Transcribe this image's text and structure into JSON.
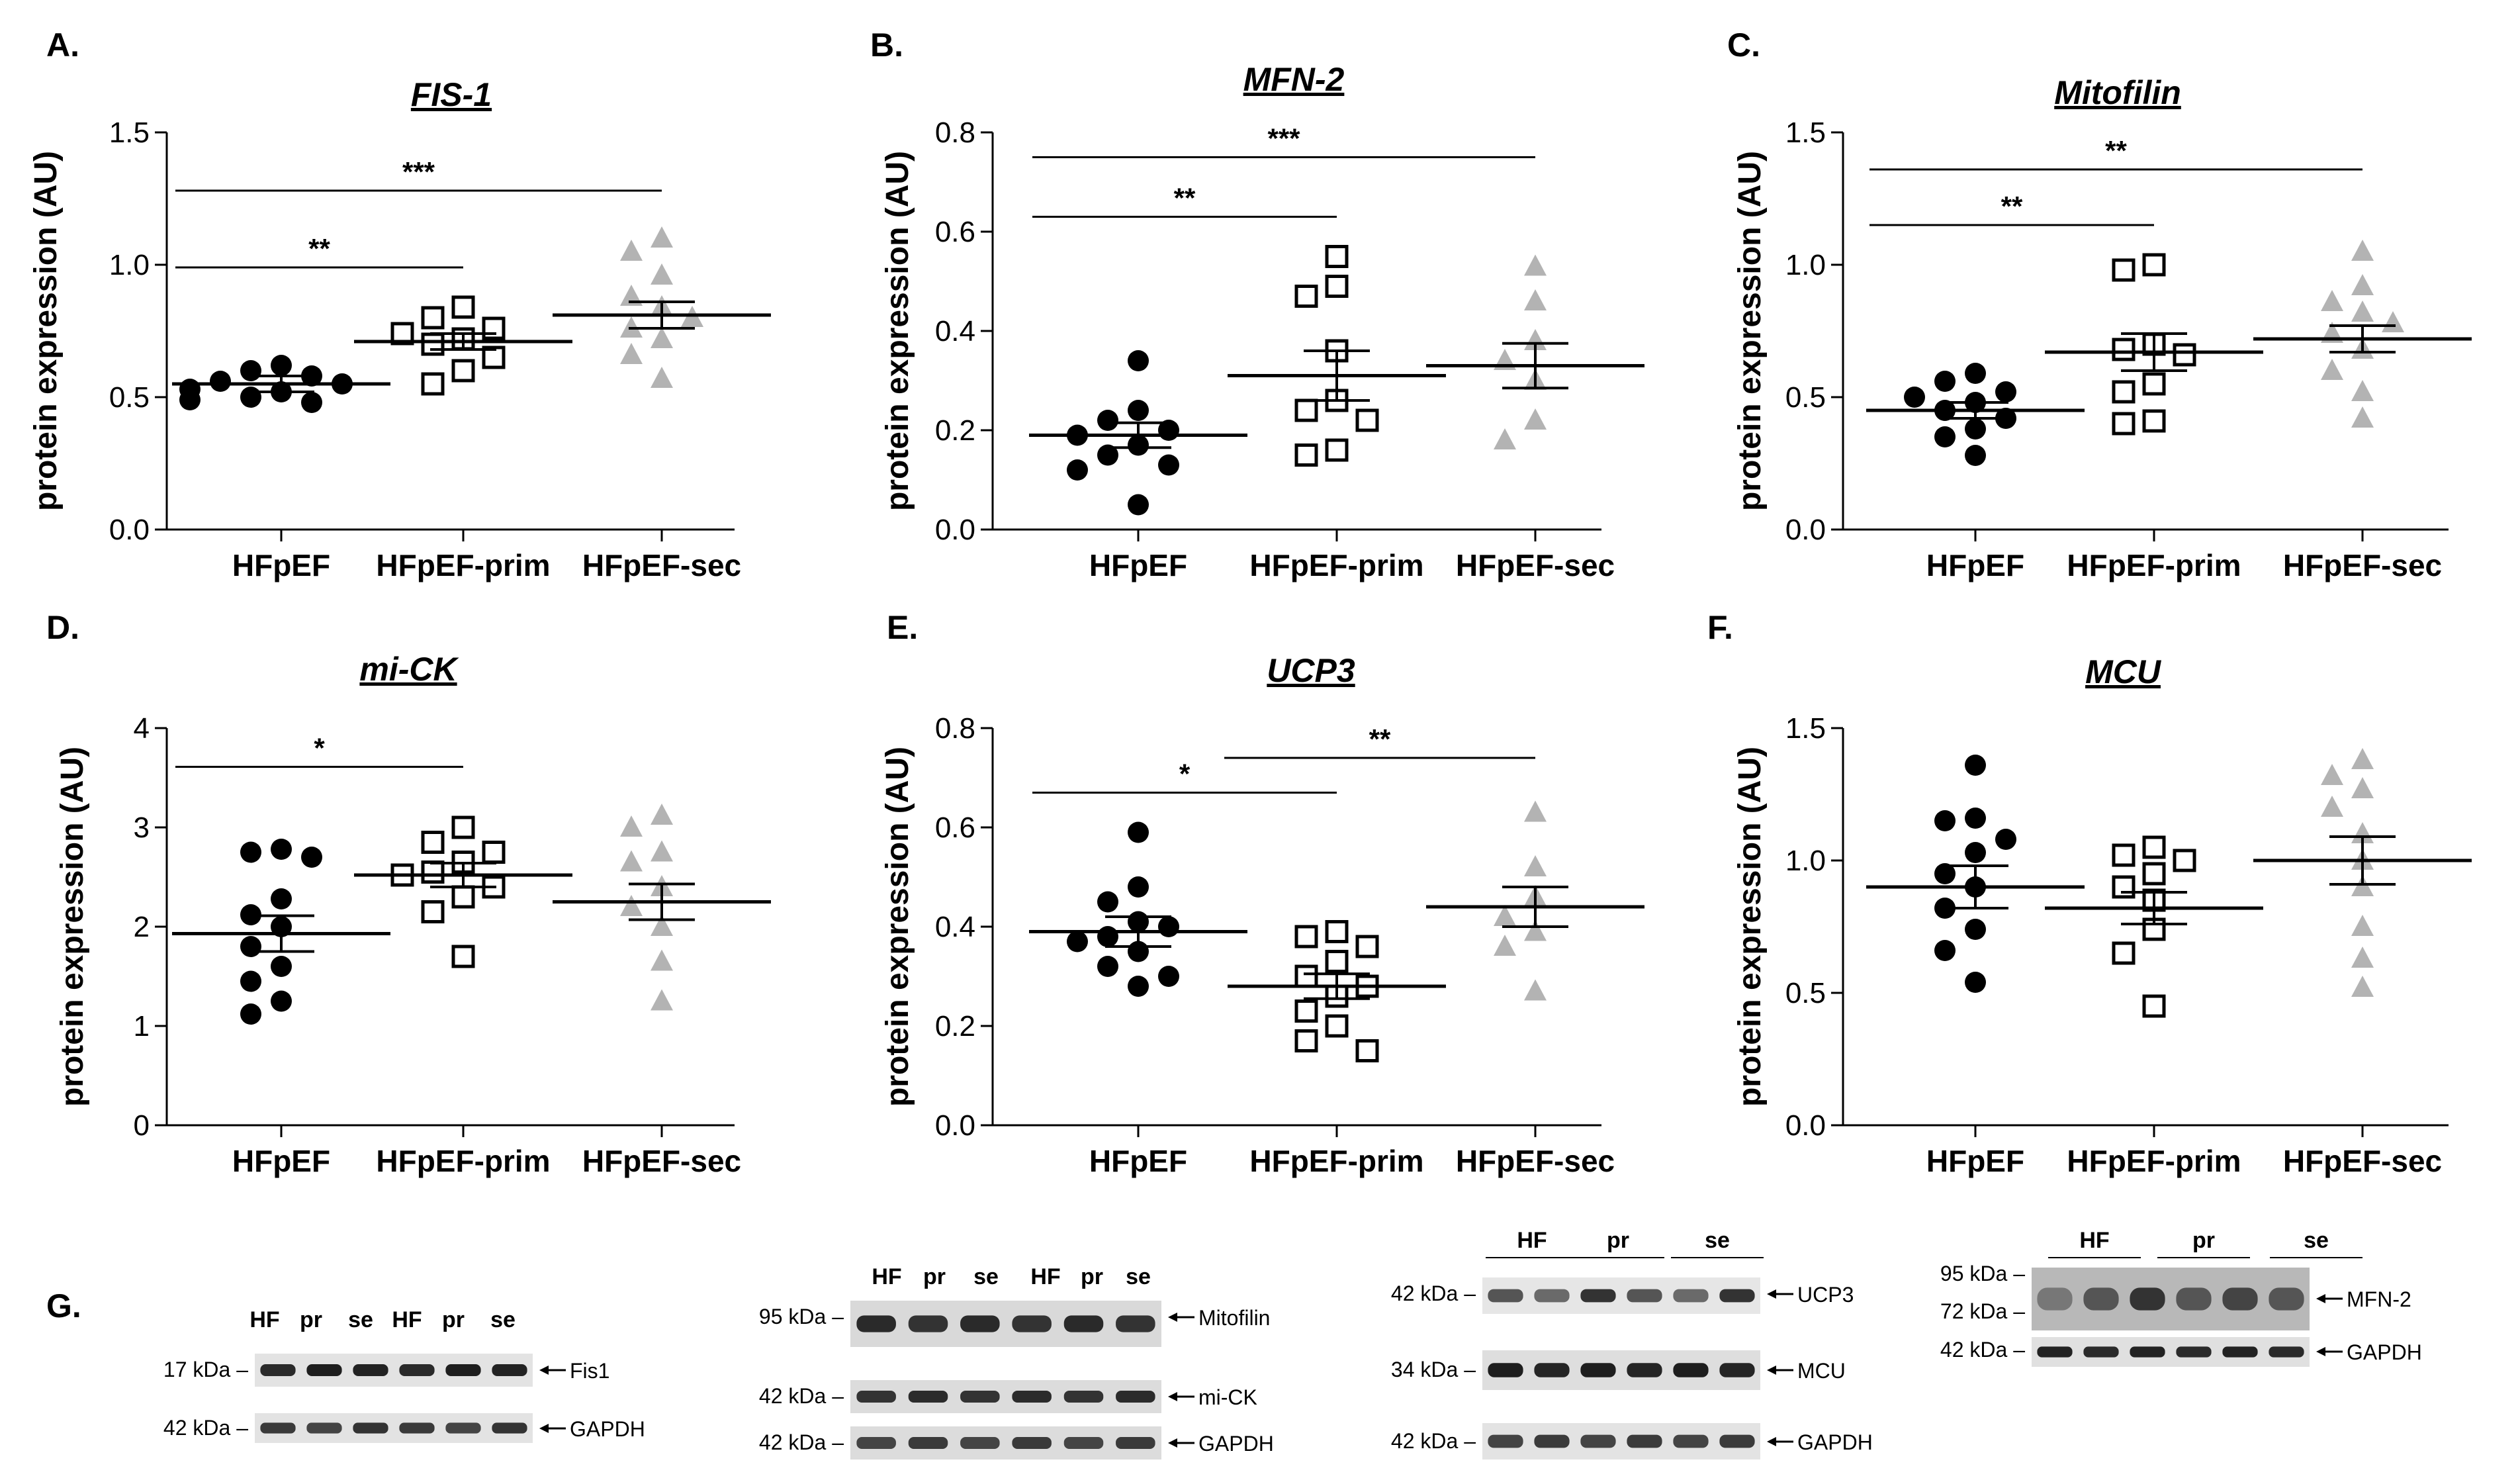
{
  "chart_data": [
    {
      "id": "A",
      "type": "scatter",
      "panel_label": "A.",
      "title": "FIS-1",
      "ylabel": "protein expression (AU)",
      "ylim": [
        0,
        1.5
      ],
      "yticks": [
        "0.0",
        "0.5",
        "1.0",
        "1.5"
      ],
      "categories": [
        "HFpEF",
        "HFpEF-prim",
        "HFpEF-sec"
      ],
      "series": [
        {
          "name": "HFpEF",
          "marker": "circle",
          "color": "#000000",
          "values": [
            0.48,
            0.49,
            0.5,
            0.52,
            0.53,
            0.55,
            0.56,
            0.58,
            0.6,
            0.62
          ],
          "mean": 0.55,
          "sem": 0.03
        },
        {
          "name": "HFpEF-prim",
          "marker": "square",
          "color": "#000000",
          "values": [
            0.55,
            0.6,
            0.65,
            0.7,
            0.72,
            0.74,
            0.76,
            0.8,
            0.84
          ],
          "mean": 0.71,
          "sem": 0.03
        },
        {
          "name": "HFpEF-sec",
          "marker": "triangle",
          "color": "#b3b3b3",
          "values": [
            0.57,
            0.66,
            0.72,
            0.76,
            0.8,
            0.84,
            0.88,
            0.96,
            1.05,
            1.1
          ],
          "mean": 0.81,
          "sem": 0.05
        }
      ],
      "significance": [
        {
          "from": 0,
          "to": 1,
          "label": "**",
          "y": 0.99
        },
        {
          "from": 0,
          "to": 2,
          "label": "***",
          "y": 1.28
        }
      ]
    },
    {
      "id": "B",
      "type": "scatter",
      "panel_label": "B.",
      "title": "MFN-2",
      "ylabel": "protein expression (AU)",
      "ylim": [
        0,
        0.8
      ],
      "yticks": [
        "0.0",
        "0.2",
        "0.4",
        "0.6",
        "0.8"
      ],
      "categories": [
        "HFpEF",
        "HFpEF-prim",
        "HFpEF-sec"
      ],
      "series": [
        {
          "name": "HFpEF",
          "marker": "circle",
          "color": "#000000",
          "values": [
            0.05,
            0.12,
            0.13,
            0.15,
            0.17,
            0.19,
            0.2,
            0.22,
            0.24,
            0.34
          ],
          "mean": 0.19,
          "sem": 0.025
        },
        {
          "name": "HFpEF-prim",
          "marker": "square",
          "color": "#000000",
          "values": [
            0.15,
            0.16,
            0.22,
            0.24,
            0.26,
            0.36,
            0.47,
            0.49,
            0.55
          ],
          "mean": 0.31,
          "sem": 0.05
        },
        {
          "name": "HFpEF-sec",
          "marker": "triangle",
          "color": "#b3b3b3",
          "values": [
            0.18,
            0.22,
            0.3,
            0.34,
            0.38,
            0.46,
            0.53
          ],
          "mean": 0.33,
          "sem": 0.045
        }
      ],
      "significance": [
        {
          "from": 0,
          "to": 1,
          "label": "**",
          "y": 0.63
        },
        {
          "from": 0,
          "to": 2,
          "label": "***",
          "y": 0.75
        }
      ]
    },
    {
      "id": "C",
      "type": "scatter",
      "panel_label": "C.",
      "title": "Mitofilin",
      "ylabel": "protein expression (AU)",
      "ylim": [
        0,
        1.5
      ],
      "yticks": [
        "0.0",
        "0.5",
        "1.0",
        "1.5"
      ],
      "categories": [
        "HFpEF",
        "HFpEF-prim",
        "HFpEF-sec"
      ],
      "series": [
        {
          "name": "HFpEF",
          "marker": "circle",
          "color": "#000000",
          "values": [
            0.28,
            0.35,
            0.38,
            0.42,
            0.45,
            0.48,
            0.5,
            0.52,
            0.56,
            0.59
          ],
          "mean": 0.45,
          "sem": 0.03
        },
        {
          "name": "HFpEF-prim",
          "marker": "square",
          "color": "#000000",
          "values": [
            0.4,
            0.41,
            0.52,
            0.55,
            0.66,
            0.68,
            0.7,
            0.98,
            1.0
          ],
          "mean": 0.67,
          "sem": 0.07
        },
        {
          "name": "HFpEF-sec",
          "marker": "triangle",
          "color": "#b3b3b3",
          "values": [
            0.42,
            0.52,
            0.6,
            0.68,
            0.74,
            0.78,
            0.82,
            0.86,
            0.92,
            1.05
          ],
          "mean": 0.72,
          "sem": 0.05
        }
      ],
      "significance": [
        {
          "from": 0,
          "to": 1,
          "label": "**",
          "y": 1.15
        },
        {
          "from": 0,
          "to": 2,
          "label": "**",
          "y": 1.36
        }
      ]
    },
    {
      "id": "D",
      "type": "scatter",
      "panel_label": "D.",
      "title": "mi-CK",
      "ylabel": "protein expression (AU)",
      "ylim": [
        0,
        4
      ],
      "yticks": [
        "0",
        "1",
        "2",
        "3",
        "4"
      ],
      "categories": [
        "HFpEF",
        "HFpEF-prim",
        "HFpEF-sec"
      ],
      "series": [
        {
          "name": "HFpEF",
          "marker": "circle",
          "color": "#000000",
          "values": [
            1.12,
            1.25,
            1.45,
            1.6,
            1.8,
            2.0,
            2.12,
            2.28,
            2.7,
            2.75,
            2.78
          ],
          "mean": 1.93,
          "sem": 0.18
        },
        {
          "name": "HFpEF-prim",
          "marker": "square",
          "color": "#000000",
          "values": [
            1.7,
            2.15,
            2.3,
            2.4,
            2.52,
            2.55,
            2.65,
            2.75,
            2.85,
            3.0
          ],
          "mean": 2.52,
          "sem": 0.12
        },
        {
          "name": "HFpEF-sec",
          "marker": "triangle",
          "color": "#b3b3b3",
          "values": [
            1.25,
            1.65,
            2.0,
            2.2,
            2.4,
            2.65,
            2.75,
            3.0,
            3.12
          ],
          "mean": 2.25,
          "sem": 0.18
        }
      ],
      "significance": [
        {
          "from": 0,
          "to": 1,
          "label": "*",
          "y": 3.61
        }
      ]
    },
    {
      "id": "E",
      "type": "scatter",
      "panel_label": "E.",
      "title": "UCP3",
      "ylabel": "protein expression (AU)",
      "ylim": [
        0,
        0.8
      ],
      "yticks": [
        "0.0",
        "0.2",
        "0.4",
        "0.6",
        "0.8"
      ],
      "categories": [
        "HFpEF",
        "HFpEF-prim",
        "HFpEF-sec"
      ],
      "series": [
        {
          "name": "HFpEF",
          "marker": "circle",
          "color": "#000000",
          "values": [
            0.28,
            0.3,
            0.32,
            0.35,
            0.37,
            0.38,
            0.4,
            0.41,
            0.45,
            0.48,
            0.59
          ],
          "mean": 0.39,
          "sem": 0.03
        },
        {
          "name": "HFpEF-prim",
          "marker": "square",
          "color": "#000000",
          "values": [
            0.15,
            0.17,
            0.2,
            0.23,
            0.26,
            0.28,
            0.3,
            0.33,
            0.36,
            0.38,
            0.39
          ],
          "mean": 0.28,
          "sem": 0.025
        },
        {
          "name": "HFpEF-sec",
          "marker": "triangle",
          "color": "#b3b3b3",
          "values": [
            0.27,
            0.36,
            0.39,
            0.42,
            0.46,
            0.52,
            0.63
          ],
          "mean": 0.44,
          "sem": 0.04
        }
      ],
      "significance": [
        {
          "from": 0,
          "to": 1,
          "label": "*",
          "y": 0.67
        },
        {
          "from": 1,
          "to": 2,
          "label": "**",
          "y": 0.74
        }
      ]
    },
    {
      "id": "F",
      "type": "scatter",
      "panel_label": "F.",
      "title": "MCU",
      "ylabel": "protein expression (AU)",
      "ylim": [
        0,
        1.5
      ],
      "yticks": [
        "0.0",
        "0.5",
        "1.0",
        "1.5"
      ],
      "categories": [
        "HFpEF",
        "HFpEF-prim",
        "HFpEF-sec"
      ],
      "series": [
        {
          "name": "HFpEF",
          "marker": "circle",
          "color": "#000000",
          "values": [
            0.54,
            0.66,
            0.74,
            0.82,
            0.9,
            0.95,
            1.03,
            1.08,
            1.15,
            1.16,
            1.36
          ],
          "mean": 0.9,
          "sem": 0.08
        },
        {
          "name": "HFpEF-prim",
          "marker": "square",
          "color": "#000000",
          "values": [
            0.45,
            0.65,
            0.74,
            0.85,
            0.9,
            0.95,
            1.0,
            1.02,
            1.05
          ],
          "mean": 0.82,
          "sem": 0.06
        },
        {
          "name": "HFpEF-sec",
          "marker": "triangle",
          "color": "#b3b3b3",
          "values": [
            0.52,
            0.63,
            0.75,
            0.9,
            1.0,
            1.1,
            1.2,
            1.27,
            1.32,
            1.38
          ],
          "mean": 1.0,
          "sem": 0.09
        }
      ],
      "significance": []
    }
  ],
  "blots": {
    "panel_label": "G.",
    "blot1": {
      "lanes": [
        "HF",
        "pr",
        "se",
        "HF",
        "pr",
        "se"
      ],
      "rows": [
        {
          "kda": "17 kDa",
          "protein": "Fis1"
        },
        {
          "kda": "42 kDa",
          "protein": "GAPDH"
        }
      ]
    },
    "blot2": {
      "lanes": [
        "HF",
        "pr",
        "se",
        "HF",
        "pr",
        "se"
      ],
      "rows": [
        {
          "kda": "95 kDa",
          "protein": "Mitofilin"
        },
        {
          "kda": "42 kDa",
          "protein": "mi-CK"
        },
        {
          "kda": "42 kDa",
          "protein": "GAPDH"
        }
      ]
    },
    "blot3": {
      "groups": [
        "HF",
        "pr",
        "se"
      ],
      "rows": [
        {
          "kda": "42 kDa",
          "protein": "UCP3"
        },
        {
          "kda": "34 kDa",
          "protein": "MCU"
        },
        {
          "kda": "42 kDa",
          "protein": "GAPDH"
        }
      ]
    },
    "blot4": {
      "groups": [
        "HF",
        "pr",
        "se"
      ],
      "rows": [
        {
          "kda": "95 kDa",
          "protein": "MFN-2"
        },
        {
          "kda": "72 kDa",
          "protein": ""
        },
        {
          "kda": "42 kDa",
          "protein": "GAPDH"
        }
      ]
    }
  }
}
